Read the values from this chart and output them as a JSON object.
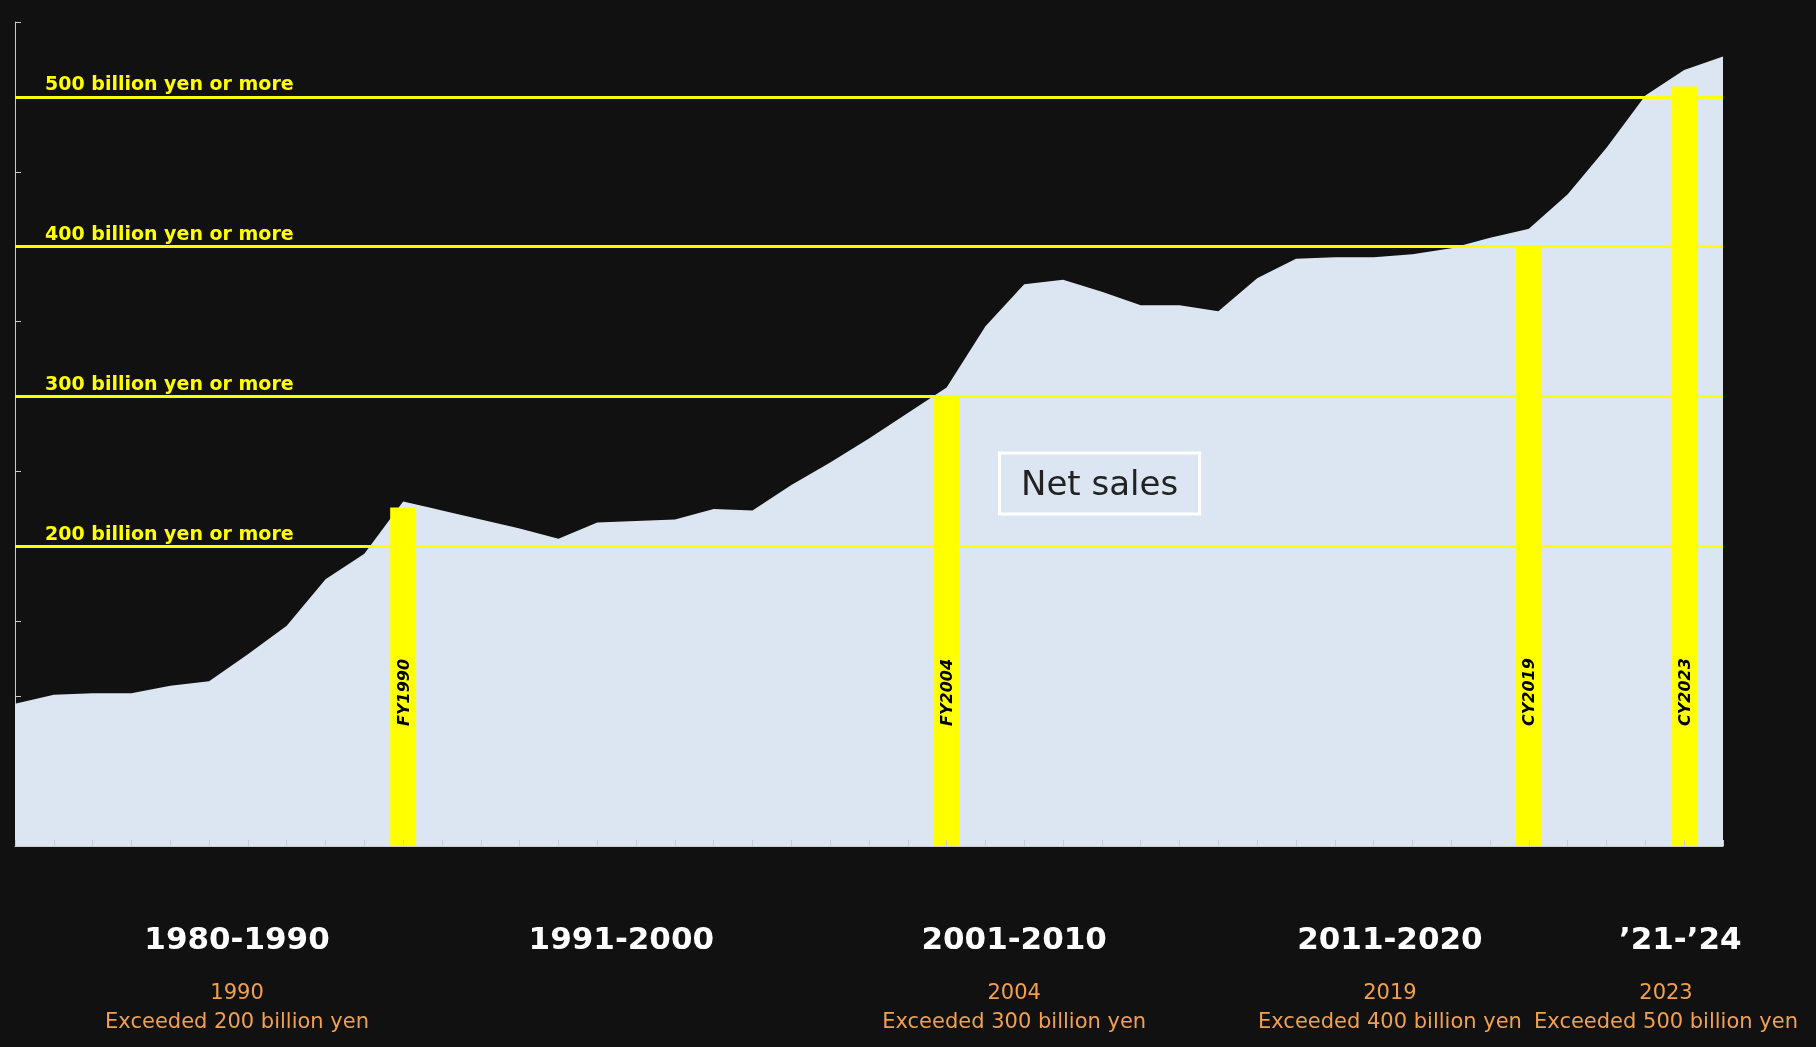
{
  "chart_data": {
    "type": "area",
    "ylim": [
      0,
      550
    ],
    "yticks": [
      {
        "value": 0,
        "label": null
      },
      {
        "value": 50,
        "label": null
      },
      {
        "value": 100,
        "label": null
      },
      {
        "value": 150,
        "label": null
      },
      {
        "value": 200,
        "label": "200 billion yen or more"
      },
      {
        "value": 250,
        "label": null
      },
      {
        "value": 300,
        "label": "300 billion yen or more"
      },
      {
        "value": 350,
        "label": null
      },
      {
        "value": 400,
        "label": "400 billion yen or more"
      },
      {
        "value": 450,
        "label": null
      },
      {
        "value": 500,
        "label": "500 billion yen or more"
      },
      {
        "value": 550,
        "label": null
      }
    ],
    "categories": [
      null,
      null,
      null,
      null,
      null,
      null,
      null,
      null,
      null,
      null,
      "FY1990",
      null,
      null,
      null,
      null,
      null,
      null,
      null,
      null,
      null,
      null,
      null,
      null,
      null,
      "FY2004",
      null,
      null,
      null,
      null,
      null,
      null,
      null,
      null,
      null,
      null,
      null,
      null,
      null,
      null,
      "CY2019",
      null,
      null,
      null,
      "CY2023",
      null
    ],
    "series": [
      {
        "name": "Net sales",
        "color": "#dce6f2",
        "values": [
          95,
          101,
          102,
          102,
          107,
          110,
          128,
          147,
          178,
          195,
          230,
          224,
          218,
          212,
          205,
          216,
          217,
          218,
          225,
          224,
          241,
          256,
          272,
          289,
          306,
          347,
          375,
          378,
          370,
          361,
          361,
          357,
          379,
          392,
          393,
          393,
          395,
          399,
          406,
          412,
          435,
          466,
          501,
          518,
          527
        ]
      },
      {
        "type": "bar",
        "color": "#ffff00",
        "values": [
          null,
          null,
          null,
          null,
          null,
          null,
          null,
          null,
          null,
          null,
          226,
          null,
          null,
          null,
          null,
          null,
          null,
          null,
          null,
          null,
          null,
          null,
          null,
          null,
          300,
          null,
          null,
          null,
          null,
          null,
          null,
          null,
          null,
          null,
          null,
          null,
          null,
          null,
          null,
          400,
          null,
          null,
          null,
          507,
          null
        ]
      }
    ],
    "legend": false,
    "ref_lines": [
      {
        "axis": "y",
        "value": 200,
        "color": "#ffff00"
      },
      {
        "axis": "y",
        "value": 300,
        "color": "#ffff00"
      },
      {
        "axis": "y",
        "value": 400,
        "color": "#ffff00"
      },
      {
        "axis": "y",
        "value": 500,
        "color": "#ffff00"
      }
    ],
    "annotations": [
      "1980-1990",
      "1991-2000",
      "2001-2010",
      "2011-2020",
      "’21-’24",
      "1990\nExceeded 200 billion yen",
      "2004\nExceeded 300 billion yen",
      "2019\nExceeded 400 billion yen",
      "2023\nExceeded 500 billion yen"
    ]
  }
}
